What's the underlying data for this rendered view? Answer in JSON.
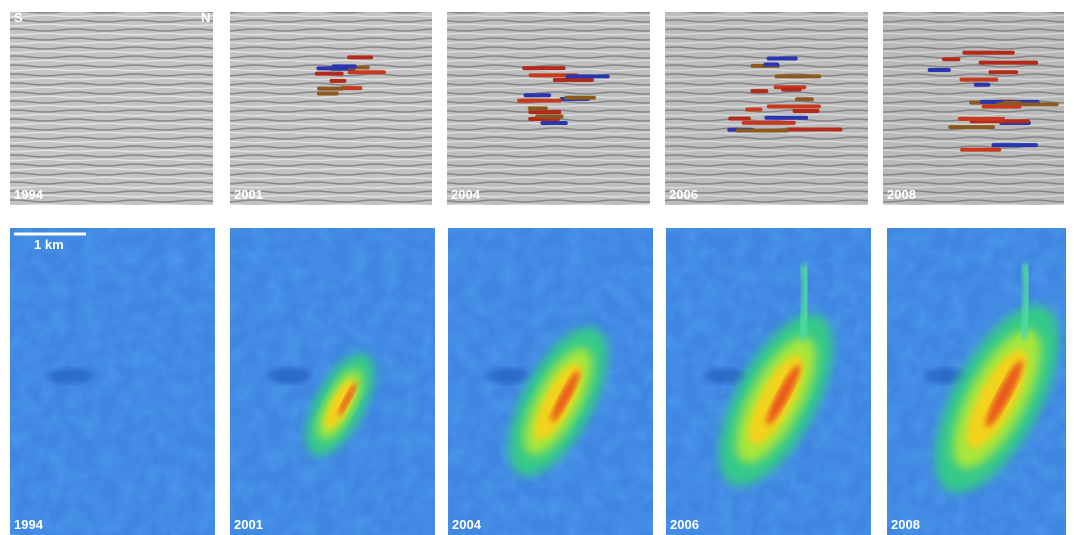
{
  "top_row": {
    "orientation": {
      "left": "S",
      "right": "N"
    },
    "panels": [
      {
        "year": "1994"
      },
      {
        "year": "2001"
      },
      {
        "year": "2004"
      },
      {
        "year": "2006"
      },
      {
        "year": "2008"
      }
    ]
  },
  "bottom_row": {
    "scale_bar": "1 km",
    "panels": [
      {
        "year": "1994"
      },
      {
        "year": "2001"
      },
      {
        "year": "2004"
      },
      {
        "year": "2006"
      },
      {
        "year": "2008"
      }
    ]
  }
}
